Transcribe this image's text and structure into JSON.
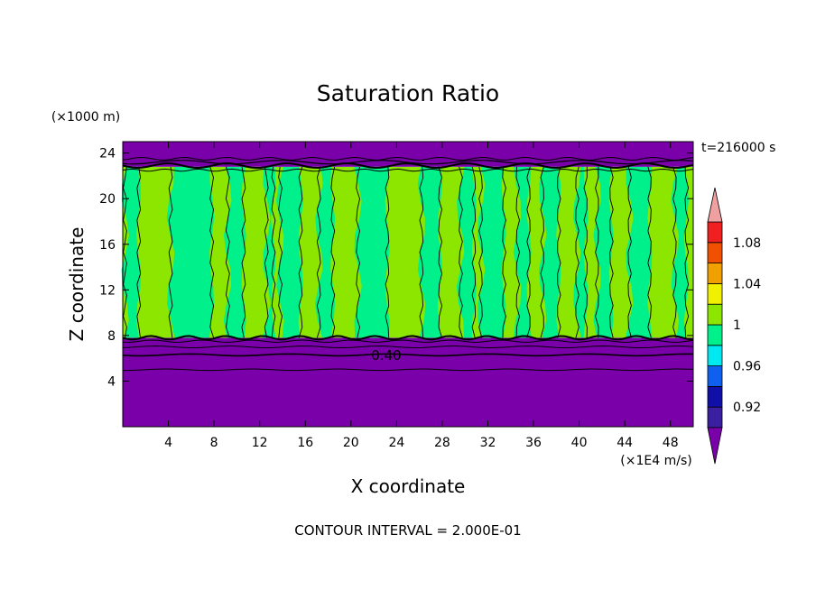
{
  "chart_data": {
    "type": "heatmap",
    "title": "Saturation Ratio",
    "xlabel": "X coordinate",
    "ylabel": "Z coordinate",
    "x_unit": "(×1E4 m/s)",
    "y_unit": "(×1000 m)",
    "time_label": "t=216000 s",
    "footer": "CONTOUR INTERVAL = 2.000E-01",
    "contour_label": "0.40",
    "xlim": [
      0,
      50
    ],
    "ylim": [
      0,
      25
    ],
    "x_ticks": [
      4,
      8,
      12,
      16,
      20,
      24,
      28,
      32,
      36,
      40,
      44,
      48
    ],
    "y_ticks": [
      4,
      8,
      12,
      16,
      20,
      24
    ],
    "colorbar": {
      "levels": [
        0.9,
        0.92,
        0.94,
        0.96,
        0.98,
        1.0,
        1.02,
        1.04,
        1.06,
        1.08,
        1.1
      ],
      "labels": [
        "0.92",
        "0.96",
        "1",
        "1.04",
        "1.08"
      ],
      "label_values": [
        0.92,
        0.96,
        1.0,
        1.04,
        1.08
      ],
      "colors": [
        "#3a1fa0",
        "#1010a8",
        "#1060f0",
        "#00e8f0",
        "#00f08c",
        "#8ce600",
        "#f0f000",
        "#f0a000",
        "#f05000",
        "#f02020"
      ],
      "under_color": "#7a00aa",
      "over_color": "#f0a0a0"
    },
    "regions": [
      {
        "z_range": [
          0,
          7.8
        ],
        "value": "<0.9",
        "color": "#7a00aa"
      },
      {
        "z_range": [
          7.8,
          22.8
        ],
        "value": "0.98–1.02",
        "colors": [
          "#00f08c",
          "#8ce600"
        ]
      },
      {
        "z_range": [
          22.8,
          25
        ],
        "value": "<0.9",
        "color": "#7a00aa"
      }
    ],
    "green_bands": [
      [
        0.2,
        1.4
      ],
      [
        4.2,
        7.8
      ],
      [
        9.2,
        10.6
      ],
      [
        12.6,
        13.2
      ],
      [
        13.8,
        15.6
      ],
      [
        17.2,
        18.4
      ],
      [
        20.6,
        23.2
      ],
      [
        26.2,
        27.8
      ],
      [
        29.6,
        30.8
      ],
      [
        31.4,
        33.4
      ],
      [
        34.6,
        35.6
      ],
      [
        36.8,
        38.2
      ],
      [
        39.8,
        40.6
      ],
      [
        41.6,
        42.8
      ],
      [
        44.4,
        46.2
      ],
      [
        48.4,
        49.4
      ]
    ]
  }
}
